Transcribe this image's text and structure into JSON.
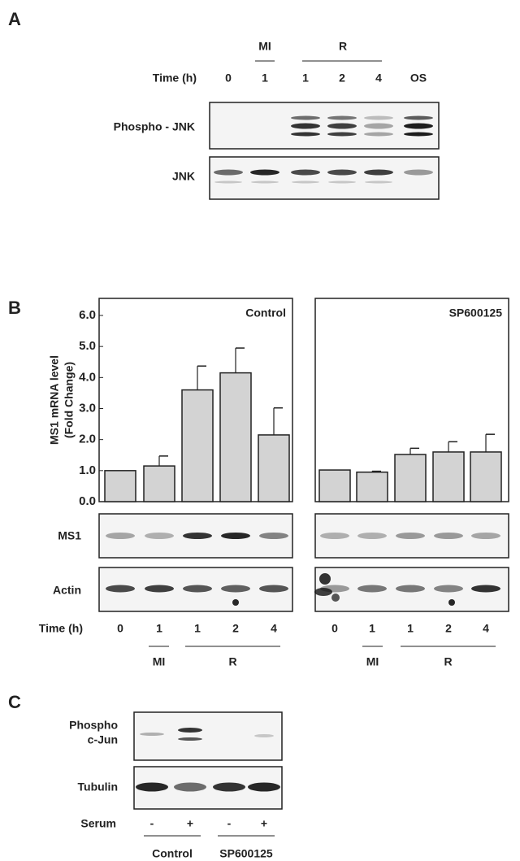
{
  "panel_a": {
    "label": "A",
    "groups": [
      "MI",
      "R"
    ],
    "time_label": "Time (h)",
    "lanes": [
      "0",
      "1",
      "1",
      "2",
      "4",
      "OS"
    ],
    "blots": [
      "Phospho - JNK",
      "JNK"
    ]
  },
  "panel_b": {
    "label": "B",
    "blots": [
      "MS1",
      "Actin"
    ]
  },
  "chart_data": [
    {
      "type": "bar",
      "title": "Control",
      "ylabel": [
        "MS1 mRNA level",
        "(Fold Change)"
      ],
      "xlabel": "Time (h)",
      "categories": [
        "0",
        "1",
        "1",
        "2",
        "4"
      ],
      "groups": [
        "MI",
        "R"
      ],
      "values": [
        1.0,
        1.15,
        3.6,
        4.15,
        2.15
      ],
      "errors": [
        0,
        0.32,
        0.77,
        0.8,
        0.87
      ],
      "color": "#d3d3d3",
      "ylim": [
        0,
        6.55
      ],
      "yticks": [
        {
          "value": 0,
          "label": "0.0"
        },
        {
          "value": 1,
          "label": "1.0"
        },
        {
          "value": 2,
          "label": "2.0"
        },
        {
          "value": 3,
          "label": "3.0"
        },
        {
          "value": 4,
          "label": "4.0"
        },
        {
          "value": 5,
          "label": "5.0"
        },
        {
          "value": 6,
          "label": "6.0"
        }
      ]
    },
    {
      "type": "bar",
      "title": "SP600125",
      "categories": [
        "0",
        "1",
        "1",
        "2",
        "4"
      ],
      "groups": [
        "MI",
        "R"
      ],
      "values": [
        1.02,
        0.95,
        1.52,
        1.6,
        1.6
      ],
      "errors": [
        0,
        0.03,
        0.2,
        0.33,
        0.57
      ],
      "color": "#d3d3d3",
      "ylim": [
        0,
        6.55
      ]
    }
  ],
  "panel_c": {
    "label": "C",
    "blots": [
      [
        "Phospho",
        "c-Jun"
      ],
      "Tubulin"
    ],
    "row_label": "Serum",
    "lanes": [
      "-",
      "+",
      "-",
      "+"
    ],
    "groups": [
      "Control",
      "SP600125"
    ]
  }
}
